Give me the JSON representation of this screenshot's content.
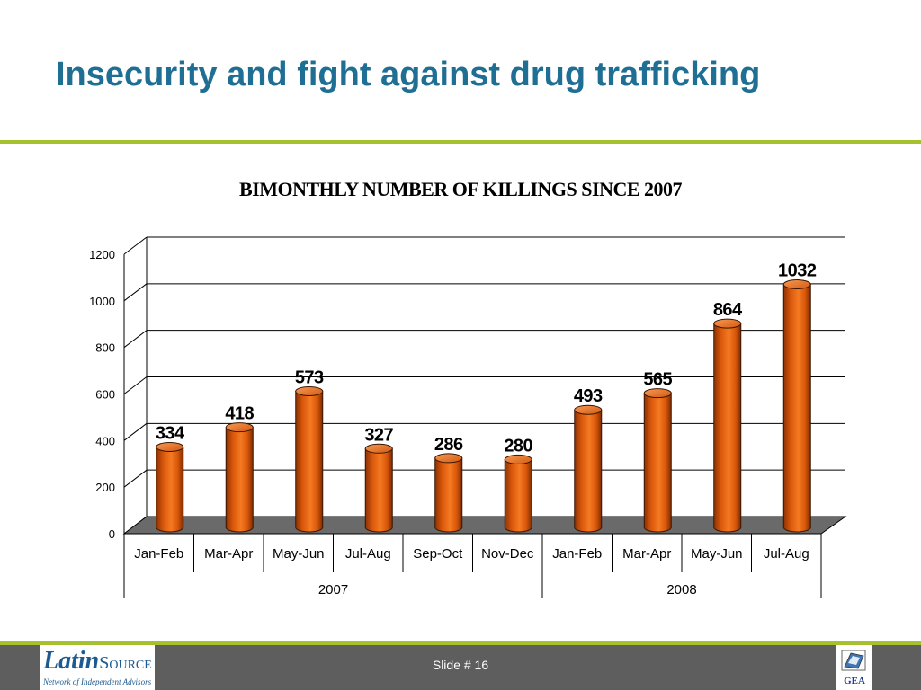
{
  "slide": {
    "title": "Insecurity and fight against drug trafficking",
    "footer": {
      "slide_number": "Slide # 16",
      "logo_left": {
        "brand_main": "Latin",
        "brand_sub": "Source",
        "tagline": "Network of Independent Advisors"
      },
      "logo_right": {
        "text": "GEA"
      }
    }
  },
  "colors": {
    "title": "#1f6f94",
    "accent_rule": "#a6c12e",
    "bar": "#e8600e",
    "bar_dark": "#9a3a04",
    "floor": "#6a6a6a",
    "footer_bg": "#5e5e5e"
  },
  "chart_data": {
    "type": "bar",
    "title": "BIMONTHLY NUMBER OF KILLINGS SINCE 2007",
    "categories": [
      "Jan-Feb",
      "Mar-Apr",
      "May-Jun",
      "Jul-Aug",
      "Sep-Oct",
      "Nov-Dec",
      "Jan-Feb",
      "Mar-Apr",
      "May-Jun",
      "Jul-Aug"
    ],
    "groups": [
      {
        "label": "2007",
        "count": 6
      },
      {
        "label": "2008",
        "count": 4
      }
    ],
    "values": [
      334,
      418,
      573,
      327,
      286,
      280,
      493,
      565,
      864,
      1032
    ],
    "data_labels": [
      "334",
      "418",
      "573",
      "327",
      "286",
      "280",
      "493",
      "565",
      "864",
      "1032"
    ],
    "ylim": [
      0,
      1200
    ],
    "yticks": [
      "0",
      "200",
      "400",
      "600",
      "800",
      "1000",
      "1200"
    ],
    "grid": true,
    "style": "3d-cylinder"
  }
}
